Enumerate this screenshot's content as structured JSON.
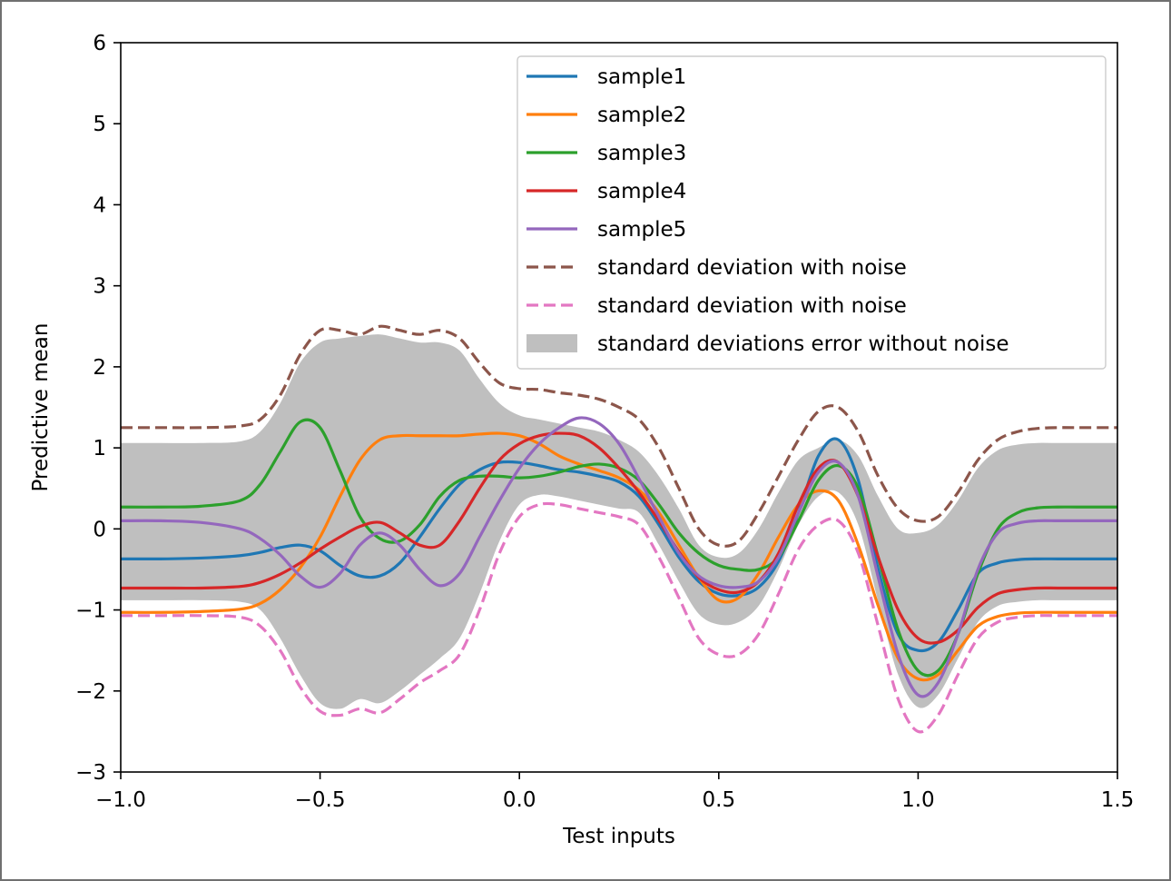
{
  "chart_data": {
    "type": "line",
    "title": "",
    "xlabel": "Test inputs",
    "ylabel": "Predictive mean",
    "xlim": [
      -1.0,
      1.5
    ],
    "ylim": [
      -3,
      6
    ],
    "x_ticks": [
      -1.0,
      -0.5,
      0.0,
      0.5,
      1.0,
      1.5
    ],
    "x_tick_labels": [
      "−1.0",
      "−0.5",
      "0.0",
      "0.5",
      "1.0",
      "1.5"
    ],
    "y_ticks": [
      -3,
      -2,
      -1,
      0,
      1,
      2,
      3,
      4,
      5,
      6
    ],
    "y_tick_labels": [
      "−3",
      "−2",
      "−1",
      "0",
      "1",
      "2",
      "3",
      "4",
      "5",
      "6"
    ],
    "grid": false,
    "legend_position": "top-right",
    "x": [
      -1.0,
      -0.9,
      -0.8,
      -0.7,
      -0.65,
      -0.6,
      -0.55,
      -0.5,
      -0.45,
      -0.4,
      -0.35,
      -0.3,
      -0.25,
      -0.2,
      -0.15,
      -0.1,
      -0.05,
      0.0,
      0.05,
      0.1,
      0.15,
      0.2,
      0.25,
      0.3,
      0.35,
      0.4,
      0.45,
      0.5,
      0.55,
      0.6,
      0.65,
      0.7,
      0.75,
      0.8,
      0.85,
      0.9,
      0.95,
      1.0,
      1.05,
      1.1,
      1.15,
      1.2,
      1.25,
      1.3,
      1.35,
      1.4,
      1.5
    ],
    "series": [
      {
        "name": "sample1",
        "color": "#1f77b4",
        "style": "solid",
        "values": [
          -0.37,
          -0.37,
          -0.36,
          -0.33,
          -0.29,
          -0.23,
          -0.2,
          -0.27,
          -0.45,
          -0.58,
          -0.58,
          -0.42,
          -0.1,
          0.25,
          0.55,
          0.73,
          0.82,
          0.82,
          0.78,
          0.73,
          0.7,
          0.65,
          0.58,
          0.4,
          0.05,
          -0.35,
          -0.65,
          -0.8,
          -0.82,
          -0.72,
          -0.4,
          0.2,
          0.9,
          1.1,
          0.6,
          -0.5,
          -1.3,
          -1.5,
          -1.4,
          -1.0,
          -0.55,
          -0.42,
          -0.38,
          -0.37,
          -0.37,
          -0.37,
          -0.37
        ]
      },
      {
        "name": "sample2",
        "color": "#ff7f0e",
        "style": "solid",
        "values": [
          -1.03,
          -1.03,
          -1.02,
          -0.99,
          -0.92,
          -0.75,
          -0.48,
          -0.1,
          0.4,
          0.85,
          1.1,
          1.15,
          1.15,
          1.15,
          1.15,
          1.17,
          1.18,
          1.15,
          1.05,
          0.9,
          0.8,
          0.72,
          0.63,
          0.48,
          0.2,
          -0.2,
          -0.6,
          -0.88,
          -0.85,
          -0.55,
          -0.1,
          0.3,
          0.47,
          0.35,
          -0.2,
          -0.95,
          -1.6,
          -1.85,
          -1.8,
          -1.5,
          -1.2,
          -1.08,
          -1.04,
          -1.03,
          -1.03,
          -1.03,
          -1.03
        ]
      },
      {
        "name": "sample3",
        "color": "#2ca02c",
        "style": "solid",
        "values": [
          0.27,
          0.27,
          0.28,
          0.35,
          0.55,
          0.95,
          1.32,
          1.25,
          0.72,
          0.15,
          -0.12,
          -0.15,
          0.05,
          0.4,
          0.6,
          0.65,
          0.65,
          0.63,
          0.65,
          0.7,
          0.77,
          0.8,
          0.75,
          0.6,
          0.3,
          -0.05,
          -0.3,
          -0.45,
          -0.5,
          -0.5,
          -0.35,
          0.1,
          0.6,
          0.78,
          0.5,
          -0.35,
          -1.25,
          -1.75,
          -1.75,
          -1.3,
          -0.55,
          0.0,
          0.2,
          0.26,
          0.27,
          0.27,
          0.27
        ]
      },
      {
        "name": "sample4",
        "color": "#d62728",
        "style": "solid",
        "values": [
          -0.73,
          -0.73,
          -0.73,
          -0.71,
          -0.66,
          -0.56,
          -0.42,
          -0.25,
          -0.1,
          0.03,
          0.08,
          -0.05,
          -0.2,
          -0.2,
          0.1,
          0.5,
          0.85,
          1.05,
          1.15,
          1.18,
          1.15,
          1.0,
          0.75,
          0.45,
          0.1,
          -0.28,
          -0.6,
          -0.75,
          -0.78,
          -0.65,
          -0.3,
          0.3,
          0.75,
          0.82,
          0.4,
          -0.35,
          -1.0,
          -1.35,
          -1.4,
          -1.25,
          -0.97,
          -0.8,
          -0.75,
          -0.73,
          -0.73,
          -0.73,
          -0.73
        ]
      },
      {
        "name": "sample5",
        "color": "#9467bd",
        "style": "solid",
        "values": [
          0.1,
          0.1,
          0.08,
          0.0,
          -0.12,
          -0.32,
          -0.58,
          -0.72,
          -0.55,
          -0.2,
          -0.05,
          -0.2,
          -0.5,
          -0.7,
          -0.55,
          -0.1,
          0.35,
          0.75,
          1.05,
          1.25,
          1.37,
          1.3,
          1.05,
          0.62,
          0.15,
          -0.3,
          -0.58,
          -0.7,
          -0.72,
          -0.65,
          -0.35,
          0.2,
          0.7,
          0.82,
          0.4,
          -0.6,
          -1.55,
          -2.05,
          -1.9,
          -1.3,
          -0.5,
          -0.05,
          0.07,
          0.1,
          0.1,
          0.1,
          0.1
        ]
      },
      {
        "name": "standard deviation with noise",
        "color": "#8c564b",
        "style": "dashed",
        "values": [
          1.25,
          1.25,
          1.25,
          1.27,
          1.35,
          1.65,
          2.15,
          2.45,
          2.45,
          2.4,
          2.5,
          2.45,
          2.4,
          2.45,
          2.35,
          2.05,
          1.8,
          1.73,
          1.72,
          1.68,
          1.65,
          1.6,
          1.5,
          1.35,
          1.0,
          0.5,
          0.0,
          -0.2,
          -0.15,
          0.2,
          0.65,
          1.1,
          1.45,
          1.5,
          1.2,
          0.65,
          0.25,
          0.1,
          0.15,
          0.45,
          0.85,
          1.1,
          1.2,
          1.24,
          1.25,
          1.25,
          1.25
        ]
      },
      {
        "name": "standard deviation with noise",
        "color": "#e377c2",
        "style": "dashed",
        "values": [
          -1.07,
          -1.07,
          -1.07,
          -1.09,
          -1.2,
          -1.5,
          -1.95,
          -2.25,
          -2.3,
          -2.22,
          -2.27,
          -2.1,
          -1.9,
          -1.75,
          -1.55,
          -1.0,
          -0.3,
          0.15,
          0.3,
          0.3,
          0.25,
          0.2,
          0.15,
          0.05,
          -0.35,
          -0.85,
          -1.35,
          -1.55,
          -1.55,
          -1.3,
          -0.8,
          -0.25,
          0.05,
          0.1,
          -0.3,
          -1.2,
          -2.1,
          -2.5,
          -2.3,
          -1.8,
          -1.35,
          -1.15,
          -1.09,
          -1.07,
          -1.07,
          -1.07,
          -1.07
        ]
      },
      {
        "name": "standard deviations error without noise",
        "color": "#bfbfbf",
        "style": "fill",
        "upper": [
          1.06,
          1.06,
          1.06,
          1.08,
          1.2,
          1.55,
          2.05,
          2.3,
          2.35,
          2.38,
          2.4,
          2.35,
          2.3,
          2.3,
          2.2,
          1.85,
          1.55,
          1.4,
          1.35,
          1.3,
          1.25,
          1.2,
          1.1,
          0.95,
          0.65,
          0.25,
          -0.2,
          -0.35,
          -0.3,
          0.0,
          0.45,
          0.85,
          1.0,
          1.1,
          0.9,
          0.4,
          0.0,
          -0.05,
          0.05,
          0.35,
          0.75,
          0.97,
          1.04,
          1.06,
          1.06,
          1.06,
          1.06
        ],
        "lower": [
          -0.88,
          -0.88,
          -0.88,
          -0.9,
          -1.0,
          -1.35,
          -1.8,
          -2.15,
          -2.22,
          -2.1,
          -2.15,
          -2.0,
          -1.8,
          -1.6,
          -1.35,
          -0.8,
          -0.15,
          0.3,
          0.42,
          0.4,
          0.35,
          0.3,
          0.25,
          0.2,
          -0.2,
          -0.65,
          -1.05,
          -1.18,
          -1.15,
          -0.95,
          -0.5,
          0.05,
          0.4,
          0.45,
          0.05,
          -0.9,
          -1.8,
          -2.2,
          -2.05,
          -1.6,
          -1.15,
          -0.95,
          -0.9,
          -0.88,
          -0.88,
          -0.88,
          -0.88
        ]
      }
    ],
    "legend": [
      {
        "label": "sample1",
        "color": "#1f77b4",
        "style": "solid"
      },
      {
        "label": "sample2",
        "color": "#ff7f0e",
        "style": "solid"
      },
      {
        "label": "sample3",
        "color": "#2ca02c",
        "style": "solid"
      },
      {
        "label": "sample4",
        "color": "#d62728",
        "style": "solid"
      },
      {
        "label": "sample5",
        "color": "#9467bd",
        "style": "solid"
      },
      {
        "label": "standard deviation with noise",
        "color": "#8c564b",
        "style": "dashed"
      },
      {
        "label": "standard deviation with noise",
        "color": "#e377c2",
        "style": "dashed"
      },
      {
        "label": "standard deviations error without noise",
        "color": "#bfbfbf",
        "style": "fill"
      }
    ]
  }
}
